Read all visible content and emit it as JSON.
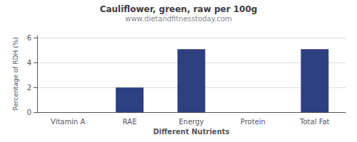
{
  "chart_data": {
    "type": "bar",
    "title": "Cauliflower, green, raw per 100g",
    "subtitle": "www.dietandfitnesstoday.com",
    "xlabel": "Different Nutrients",
    "ylabel": "Percentage of RDH (%)",
    "categories": [
      "Vitamin A",
      "RAE",
      "Energy",
      "Protein",
      "Total Fat"
    ],
    "values": [
      0,
      2.0,
      5.1,
      0,
      5.1
    ],
    "color": "#2e4080",
    "ylim": [
      0,
      6.2
    ],
    "yticks": [
      0,
      2,
      4,
      6
    ],
    "grid": true
  }
}
